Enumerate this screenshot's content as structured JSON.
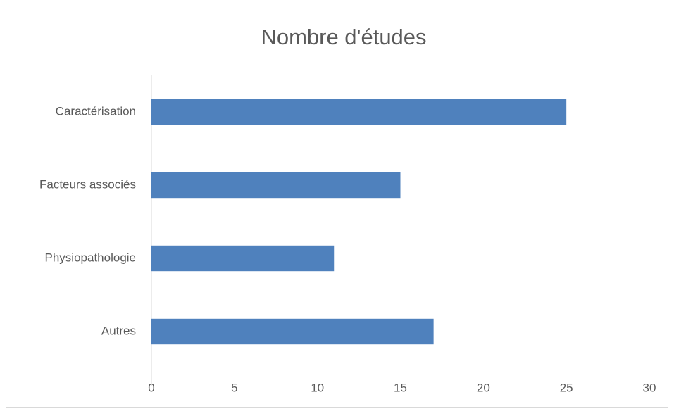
{
  "chart_data": {
    "type": "bar",
    "orientation": "horizontal",
    "title": "Nombre d'études",
    "categories": [
      "Caractérisation",
      "Facteurs associés",
      "Physiopathologie",
      "Autres"
    ],
    "values": [
      25,
      15,
      11,
      17
    ],
    "color": "#4f81bd",
    "xlim": [
      0,
      30
    ],
    "xticks": [
      0,
      5,
      10,
      15,
      20,
      25,
      30
    ],
    "grid": false
  }
}
